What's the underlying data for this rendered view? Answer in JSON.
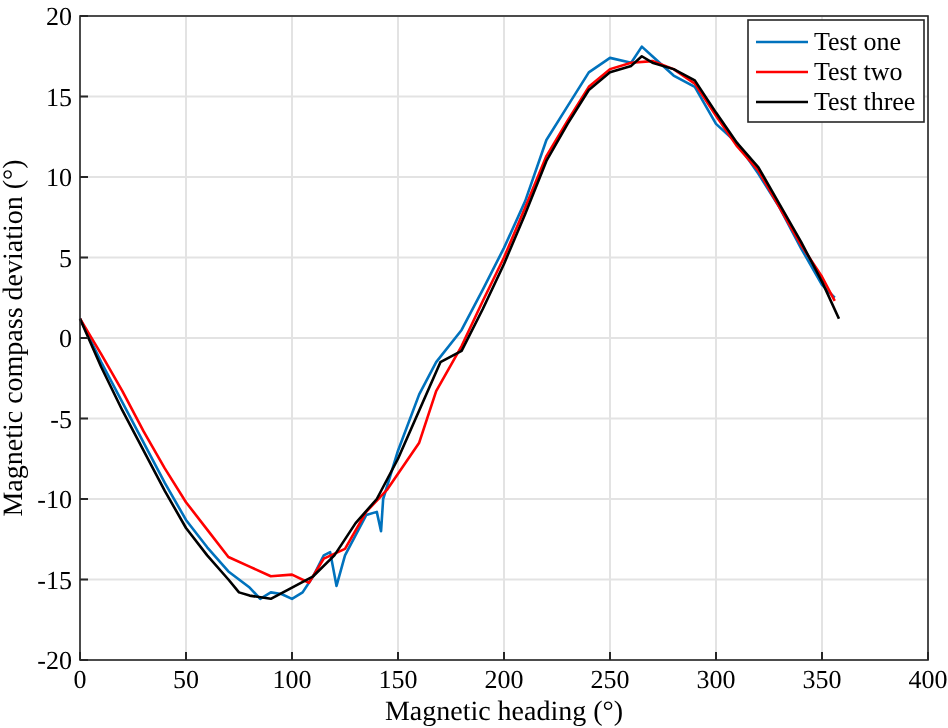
{
  "chart_data": {
    "type": "line",
    "xlabel": "Magnetic heading (°)",
    "ylabel": "Magnetic compass deviation (°)",
    "xlim": [
      0,
      400
    ],
    "xticks": [
      0,
      50,
      100,
      150,
      200,
      250,
      300,
      350,
      400
    ],
    "ylim": [
      -20,
      20
    ],
    "yticks": [
      -20,
      -15,
      -10,
      -5,
      0,
      5,
      10,
      15,
      20
    ],
    "grid": true,
    "legend": "top right",
    "line_style": "solid",
    "marker": "none",
    "series": [
      {
        "name": "Test one",
        "color": "#0072bd",
        "x": [
          0,
          10,
          20,
          30,
          40,
          50,
          60,
          70,
          80,
          85,
          90,
          95,
          100,
          105,
          110,
          115,
          118,
          121,
          125,
          135,
          140,
          142,
          143,
          150,
          160,
          168,
          180,
          190,
          200,
          210,
          220,
          230,
          240,
          250,
          260,
          265,
          270,
          280,
          290,
          300,
          310,
          320,
          330,
          340,
          350,
          356
        ],
        "values": [
          1.2,
          -1.5,
          -4,
          -6.5,
          -9,
          -11.3,
          -13,
          -14.5,
          -15.5,
          -16.2,
          -15.8,
          -15.9,
          -16.2,
          -15.8,
          -14.8,
          -13.5,
          -13.3,
          -15.4,
          -13.5,
          -11,
          -10.8,
          -12,
          -10,
          -7,
          -3.5,
          -1.5,
          0.5,
          3,
          5.6,
          8.5,
          12.3,
          14.4,
          16.5,
          17.4,
          17.1,
          18.1,
          17.5,
          16.3,
          15.6,
          13.3,
          12.1,
          10.2,
          8.1,
          5.6,
          3.3,
          2.5
        ]
      },
      {
        "name": "Test two",
        "color": "#ff0000",
        "x": [
          0,
          10,
          20,
          30,
          40,
          50,
          60,
          70,
          80,
          90,
          100,
          108,
          115,
          125,
          135,
          145,
          160,
          168,
          180,
          190,
          200,
          210,
          220,
          230,
          240,
          250,
          260,
          270,
          280,
          290,
          300,
          310,
          320,
          330,
          340,
          350,
          356
        ],
        "values": [
          1.2,
          -1,
          -3.3,
          -5.8,
          -8.1,
          -10.2,
          -11.9,
          -13.6,
          -14.2,
          -14.8,
          -14.7,
          -15.2,
          -13.7,
          -13.1,
          -10.8,
          -9.4,
          -6.5,
          -3.3,
          -0.5,
          2.3,
          5,
          8.1,
          11.3,
          13.5,
          15.6,
          16.7,
          17.1,
          17.2,
          16.7,
          15.8,
          13.8,
          11.9,
          10.4,
          8.1,
          5.8,
          3.8,
          2.3
        ]
      },
      {
        "name": "Test three",
        "color": "#000000",
        "x": [
          0,
          10,
          20,
          30,
          40,
          50,
          60,
          70,
          75,
          80,
          90,
          100,
          110,
          120,
          130,
          140,
          150,
          160,
          170,
          180,
          190,
          200,
          210,
          220,
          230,
          240,
          250,
          260,
          265,
          270,
          280,
          290,
          300,
          310,
          320,
          330,
          340,
          350,
          358
        ],
        "values": [
          1.2,
          -1.8,
          -4.5,
          -7,
          -9.5,
          -11.8,
          -13.5,
          -15,
          -15.8,
          -16,
          -16.2,
          -15.5,
          -14.8,
          -13.5,
          -11.5,
          -10,
          -7.5,
          -4.5,
          -1.5,
          -0.8,
          1.8,
          4.6,
          7.7,
          11,
          13.3,
          15.4,
          16.5,
          16.9,
          17.5,
          17.1,
          16.7,
          16,
          14,
          12.1,
          10.6,
          8.3,
          6,
          3.5,
          1.2
        ]
      }
    ]
  }
}
